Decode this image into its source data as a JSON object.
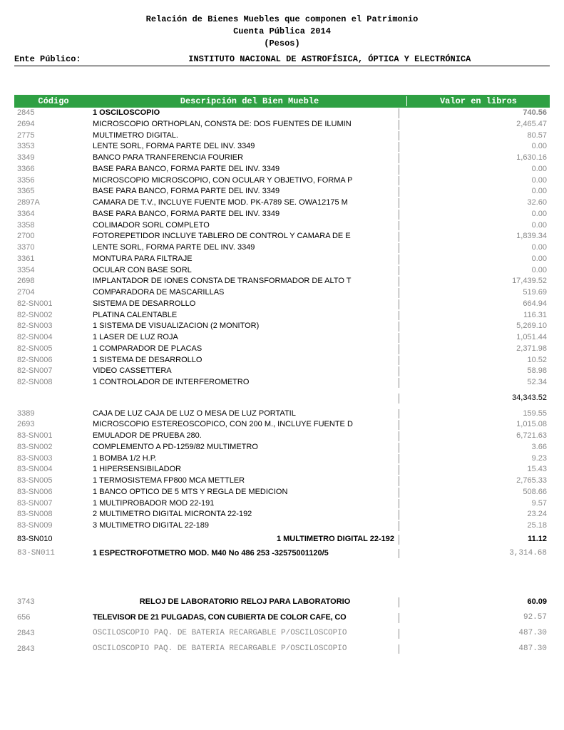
{
  "header": {
    "title": "Relación de Bienes Muebles que componen el Patrimonio",
    "subtitle1": "Cuenta Pública 2014",
    "subtitle2": "(Pesos)",
    "ente_label": "Ente Público:",
    "ente_value": "INSTITUTO NACIONAL DE ASTROFÍSICA, ÓPTICA Y ELECTRÓNICA"
  },
  "columns": {
    "codigo": "Código",
    "descripcion": "Descripción del Bien Mueble",
    "valor": "Valor en libros"
  },
  "colors": {
    "header_bg": "#2ea043",
    "header_fg": "#ffffff",
    "gray_text": "#888888"
  },
  "rows": [
    {
      "codigo": "2845",
      "desc": "1 OSCILOSCOPIO",
      "valor": "740.56",
      "style": "bold"
    },
    {
      "codigo": "2694",
      "desc": "MICROSCOPIO ORTHOPLAN, CONSTA DE: DOS FUENTES DE ILUMIN",
      "valor": "2,465.47"
    },
    {
      "codigo": "2775",
      "desc": "MULTIMETRO DIGITAL.",
      "valor": "80.57"
    },
    {
      "codigo": "3353",
      "desc": "LENTE SORL, FORMA PARTE DEL INV. 3349",
      "valor": "0.00"
    },
    {
      "codigo": "3349",
      "desc": "BANCO PARA TRANFERENCIA FOURIER",
      "valor": "1,630.16"
    },
    {
      "codigo": "3366",
      "desc": "BASE PARA BANCO, FORMA PARTE DEL INV. 3349",
      "valor": "0.00"
    },
    {
      "codigo": "3356",
      "desc": "MICROSCOPIO MICROSCOPIO, CON OCULAR Y OBJETIVO, FORMA P",
      "valor": "0.00"
    },
    {
      "codigo": "3365",
      "desc": "BASE PARA BANCO, FORMA PARTE DEL INV. 3349",
      "valor": "0.00"
    },
    {
      "codigo": "2897A",
      "desc": "CAMARA DE T.V., INCLUYE FUENTE MOD. PK-A789 SE. OWA12175 M",
      "valor": "32.60"
    },
    {
      "codigo": "3364",
      "desc": "BASE PARA BANCO, FORMA PARTE DEL INV. 3349",
      "valor": "0.00"
    },
    {
      "codigo": "3358",
      "desc": "COLIMADOR SORL COMPLETO",
      "valor": "0.00"
    },
    {
      "codigo": "2700",
      "desc": "FOTOREPETIDOR INCLUYE TABLERO DE CONTROL Y CAMARA DE E",
      "valor": "1,839.34"
    },
    {
      "codigo": "3370",
      "desc": "LENTE SORL, FORMA PARTE DEL INV. 3349",
      "valor": "0.00"
    },
    {
      "codigo": "3361",
      "desc": "MONTURA PARA FILTRAJE",
      "valor": "0.00"
    },
    {
      "codigo": "3354",
      "desc": "OCULAR CON BASE SORL",
      "valor": "0.00"
    },
    {
      "codigo": "2698",
      "desc": "IMPLANTADOR DE IONES CONSTA DE TRANSFORMADOR DE ALTO T",
      "valor": "17,439.52"
    },
    {
      "codigo": "2704",
      "desc": "COMPARADORA DE MASCARILLAS",
      "valor": "519.69"
    },
    {
      "codigo": "82-SN001",
      "desc": "SISTEMA DE DESARROLLO",
      "valor": "664.94"
    },
    {
      "codigo": "82-SN002",
      "desc": "PLATINA CALENTABLE",
      "valor": "116.31"
    },
    {
      "codigo": "82-SN003",
      "desc": " 1 SISTEMA DE VISUALIZACION (2 MONITOR)",
      "valor": "5,269.10"
    },
    {
      "codigo": "82-SN004",
      "desc": " 1 LASER DE LUZ ROJA",
      "valor": "1,051.44"
    },
    {
      "codigo": "82-SN005",
      "desc": " 1 COMPARADOR DE PLACAS",
      "valor": "2,371.98"
    },
    {
      "codigo": "82-SN006",
      "desc": " 1 SISTEMA DE DESARROLLO",
      "valor": "10.52"
    },
    {
      "codigo": "82-SN007",
      "desc": " VIDEO CASSETTERA",
      "valor": "58.98"
    },
    {
      "codigo": "82-SN008",
      "desc": " 1 CONTROLADOR DE INTERFEROMETRO",
      "valor": "52.34"
    },
    {
      "codigo": "",
      "desc": "",
      "valor": "34,343.52",
      "style": "subtotal"
    },
    {
      "codigo": "3389",
      "desc": "CAJA DE LUZ CAJA DE LUZ O MESA DE LUZ PORTATIL",
      "valor": "159.55"
    },
    {
      "codigo": "2693",
      "desc": "MICROSCOPIO ESTEREOSCOPICO, CON 200 M., INCLUYE FUENTE D",
      "valor": "1,015.08"
    },
    {
      "codigo": "83-SN001",
      "desc": "EMULADOR DE PRUEBA 280.",
      "valor": "6,721.63"
    },
    {
      "codigo": "83-SN002",
      "desc": "  COMPLEMENTO A PD-1259/82 MULTIMETRO",
      "valor": "3.66"
    },
    {
      "codigo": "83-SN003",
      "desc": " 1 BOMBA 1/2 H.P.",
      "valor": "9.23"
    },
    {
      "codigo": "83-SN004",
      "desc": " 1 HIPERSENSIBILADOR",
      "valor": "15.43"
    },
    {
      "codigo": "83-SN005",
      "desc": " 1 TERMOSISTEMA  FP800 MCA  METTLER",
      "valor": "2,765.33"
    },
    {
      "codigo": "83-SN006",
      "desc": " 1 BANCO OPTICO DE 5  MTS Y REGLA DE MEDICION",
      "valor": "508.66"
    },
    {
      "codigo": "83-SN007",
      "desc": " 1 MULTIPROBADOR  MOD 22-191",
      "valor": "9.57"
    },
    {
      "codigo": "83-SN008",
      "desc": " 2 MULTIMETRO DIGITAL MICRONTA  22-192",
      "valor": "23.24"
    },
    {
      "codigo": "83-SN009",
      "desc": " 3 MULTIMETRO DIGITAL   22-189",
      "valor": "25.18"
    },
    {
      "codigo": "83-SN010",
      "desc": "1 MULTIMETRO DIGITAL   22-192",
      "valor": "11.12",
      "style": "bold-right"
    },
    {
      "codigo": "83-SN011",
      "desc": "1 ESPECTROFOTMETRO  MOD. M40 No 486 253 -32575001120/5",
      "valor": "3,314.68",
      "style": "mono"
    },
    {
      "codigo": "",
      "desc": "",
      "valor": "",
      "style": "gap"
    },
    {
      "codigo": "3743",
      "desc": "RELOJ DE LABORATORIO RELOJ PARA LABORATORIO",
      "valor": "60.09",
      "style": "centered"
    },
    {
      "codigo": "656",
      "desc": "TELEVISOR DE 21 PULGADAS, CON CUBIERTA DE COLOR CAFE, CO",
      "valor": "92.57",
      "style": "mono-bold"
    },
    {
      "codigo": "2843",
      "desc": "OSCILOSCOPIO PAQ. DE BATERIA RECARGABLE P/OSCILOSCOPIO",
      "valor": "487.30",
      "style": "mono-gray"
    },
    {
      "codigo": "2843",
      "desc": "OSCILOSCOPIO PAQ. DE BATERIA RECARGABLE P/OSCILOSCOPIO",
      "valor": "487.30",
      "style": "mono-gray"
    }
  ]
}
